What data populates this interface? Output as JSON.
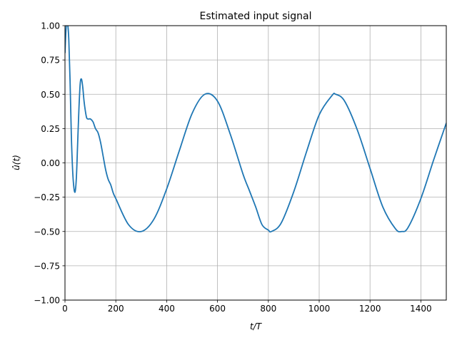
{
  "chart_data": {
    "type": "line",
    "title": "Estimated input signal",
    "xlabel": "t/T",
    "ylabel": "û(t)",
    "xlim": [
      0,
      1500
    ],
    "ylim": [
      -1.0,
      1.0
    ],
    "grid": true,
    "x_ticks": [
      0,
      200,
      400,
      600,
      800,
      1000,
      1200,
      1400
    ],
    "x_tick_labels": [
      "0",
      "200",
      "400",
      "600",
      "800",
      "1000",
      "1200",
      "1400"
    ],
    "y_ticks": [
      1.0,
      0.75,
      0.5,
      0.25,
      0.0,
      -0.25,
      -0.5,
      -0.75,
      -1.0
    ],
    "y_tick_labels": [
      "1.00",
      "0.75",
      "0.50",
      "0.25",
      "0.00",
      "−0.25",
      "−0.50",
      "−0.75",
      "−1.00"
    ],
    "series": [
      {
        "color": "#1f77b4",
        "x": [
          0,
          5,
          10,
          15,
          20,
          25,
          30,
          35,
          40,
          45,
          50,
          55,
          60,
          65,
          70,
          75,
          80,
          85,
          90,
          95,
          100,
          110,
          120,
          130,
          140,
          150,
          160,
          170,
          180,
          190,
          200,
          250,
          300,
          350,
          400,
          450,
          500,
          550,
          600,
          650,
          700,
          725,
          750,
          775,
          800,
          812,
          850,
          900,
          950,
          1000,
          1050,
          1065,
          1100,
          1150,
          1200,
          1250,
          1300,
          1325,
          1350,
          1400,
          1450,
          1500
        ],
        "y": [
          0.8,
          1.0,
          1.02,
          0.9,
          0.6,
          0.2,
          -0.05,
          -0.18,
          -0.21,
          -0.1,
          0.15,
          0.4,
          0.58,
          0.61,
          0.55,
          0.45,
          0.38,
          0.33,
          0.32,
          0.32,
          0.32,
          0.3,
          0.25,
          0.22,
          0.15,
          0.05,
          -0.05,
          -0.12,
          -0.16,
          -0.22,
          -0.26,
          -0.45,
          -0.5,
          -0.41,
          -0.19,
          0.09,
          0.36,
          0.5,
          0.45,
          0.21,
          -0.08,
          -0.2,
          -0.32,
          -0.45,
          -0.49,
          -0.5,
          -0.44,
          -0.21,
          0.08,
          0.35,
          0.49,
          0.5,
          0.45,
          0.24,
          -0.04,
          -0.32,
          -0.48,
          -0.5,
          -0.47,
          -0.26,
          0.02,
          0.29
        ]
      }
    ]
  }
}
